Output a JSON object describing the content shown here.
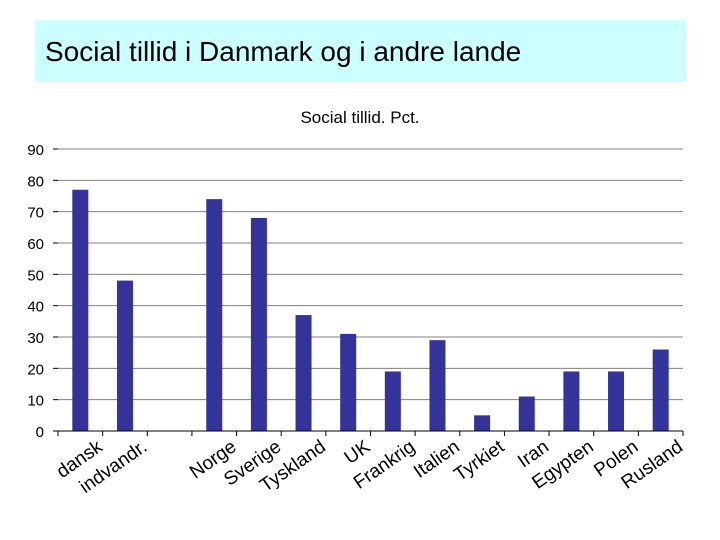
{
  "slide": {
    "title": "Social tillid i Danmark og i andre lande"
  },
  "chart_data": {
    "type": "bar",
    "title": "Social tillid. Pct.",
    "xlabel": "",
    "ylabel": "",
    "ylim": [
      0,
      90
    ],
    "yticks": [
      0,
      10,
      20,
      30,
      40,
      50,
      60,
      70,
      80,
      90
    ],
    "grid": true,
    "legend": "none",
    "bar_color": "#333399",
    "grid_color": "#808080",
    "categories": [
      "dansk",
      "indvandr.",
      "",
      "Norge",
      "Sverige",
      "Tyskland",
      "UK",
      "Frankrig",
      "Italien",
      "Tyrkiet",
      "Iran",
      "Egypten",
      "Polen",
      "Rusland"
    ],
    "values": [
      77,
      48,
      null,
      74,
      68,
      37,
      31,
      19,
      29,
      5,
      11,
      19,
      19,
      26
    ]
  }
}
